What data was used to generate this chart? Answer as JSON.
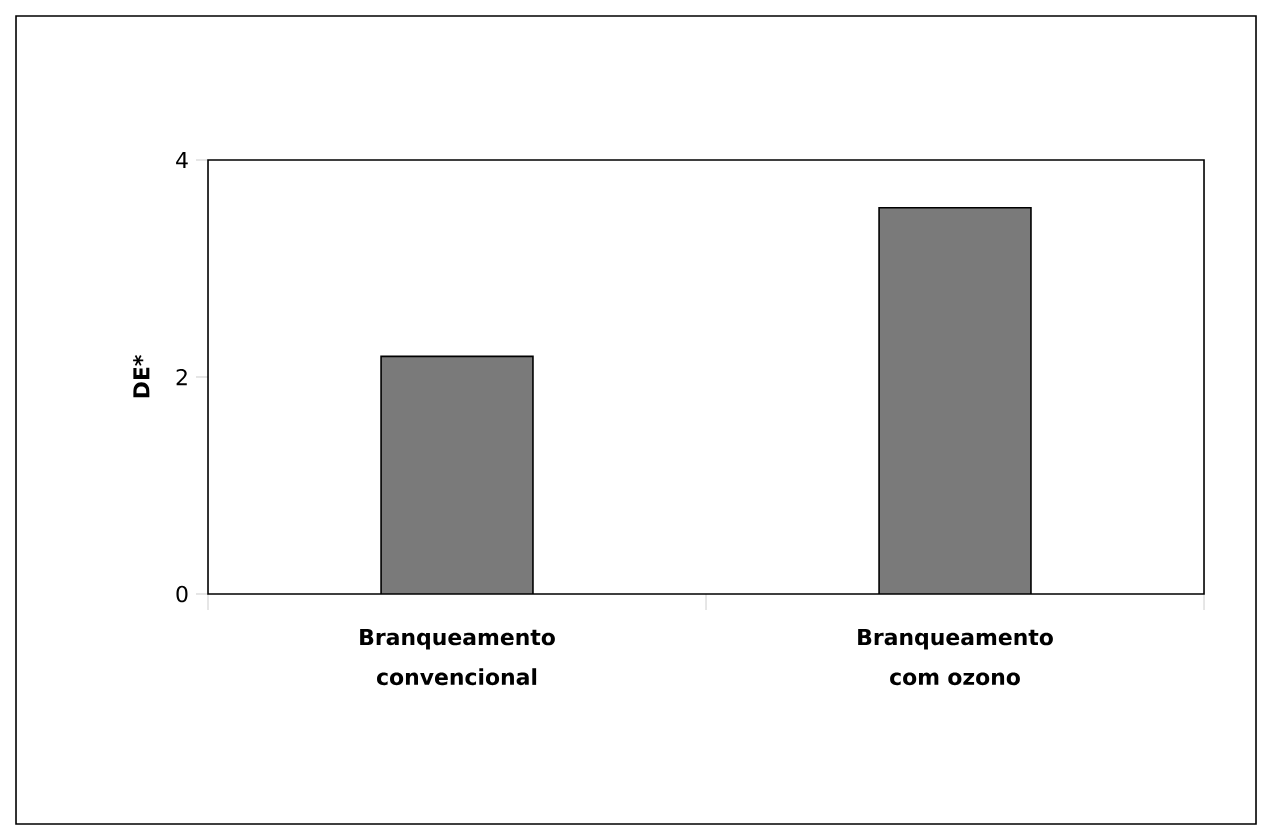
{
  "chart_data": {
    "type": "bar",
    "ylabel": "DE*",
    "categories": [
      "Branqueamento convencional",
      "Branqueamento com ozono"
    ],
    "values": [
      2.19,
      3.56
    ],
    "color": "#7a7a7a",
    "ylim": [
      0,
      4
    ],
    "yticks": [
      0,
      2,
      4
    ],
    "grid": false
  }
}
